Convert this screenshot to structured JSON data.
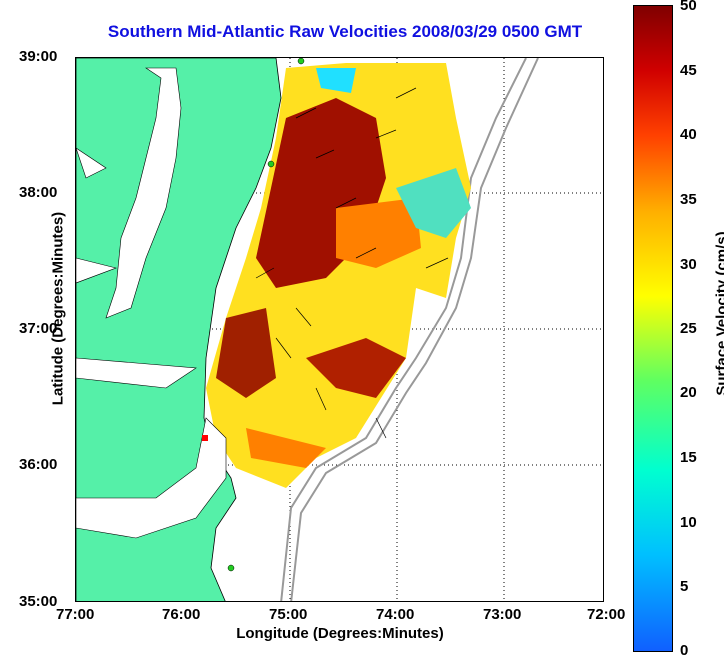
{
  "title": "Southern Mid-Atlantic Raw Velocities 2008/03/29 0500 GMT",
  "x_axis": {
    "label": "Longitude (Degrees:Minutes)",
    "ticks": [
      "77:00",
      "76:00",
      "75:00",
      "74:00",
      "73:00",
      "72:00"
    ]
  },
  "y_axis": {
    "label": "Latitude (Degrees:Minutes)",
    "ticks": [
      "39:00",
      "38:00",
      "37:00",
      "36:00",
      "35:00"
    ]
  },
  "colorbar": {
    "label": "Surface Velocity (cm/s)",
    "ticks": [
      "50",
      "45",
      "40",
      "35",
      "30",
      "25",
      "20",
      "15",
      "10",
      "5",
      "0"
    ]
  },
  "colors": {
    "land": "#55f0a8",
    "title": "#1010e0"
  }
}
